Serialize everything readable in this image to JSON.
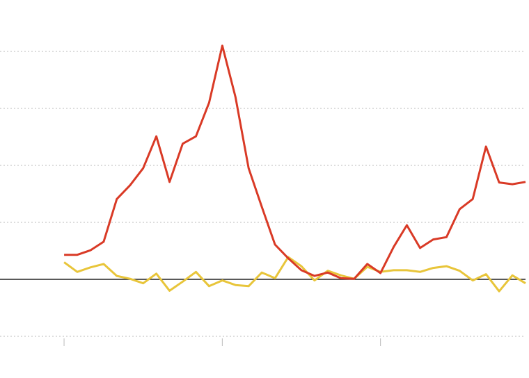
{
  "chart_data": {
    "type": "line",
    "x": [
      0,
      1,
      2,
      3,
      4,
      5,
      6,
      7,
      8,
      9,
      10,
      11,
      12,
      13,
      14,
      15,
      16,
      17,
      18,
      19,
      20,
      21,
      22,
      23,
      24,
      25,
      26,
      27,
      28,
      29,
      30,
      31,
      32,
      33,
      34,
      35
    ],
    "series": [
      {
        "color": "#e8c53a",
        "values": [
          0.3,
          0.13,
          0.21,
          0.27,
          0.06,
          0.01,
          -0.07,
          0.1,
          -0.2,
          -0.04,
          0.13,
          -0.12,
          -0.02,
          -0.1,
          -0.12,
          0.12,
          0.02,
          0.39,
          0.23,
          -0.02,
          0.15,
          0.07,
          0.01,
          0.22,
          0.13,
          0.16,
          0.16,
          0.13,
          0.2,
          0.23,
          0.15,
          -0.02,
          0.09,
          -0.21,
          0.07,
          -0.07
        ]
      },
      {
        "color": "#d93a26",
        "values": [
          0.43,
          0.43,
          0.51,
          0.66,
          1.41,
          1.65,
          1.95,
          2.51,
          1.71,
          2.38,
          2.51,
          3.1,
          4.1,
          3.2,
          1.95,
          1.27,
          0.61,
          0.37,
          0.16,
          0.06,
          0.12,
          0.02,
          0.01,
          0.27,
          0.11,
          0.57,
          0.95,
          0.55,
          0.7,
          0.74,
          1.23,
          1.41,
          2.33,
          1.7,
          1.67,
          1.71
        ]
      }
    ],
    "xlim": [
      -4.86,
      35
    ],
    "xticks": [
      0,
      12,
      24
    ],
    "ylim": [
      -1,
      4.4
    ],
    "yticks": [
      -1,
      0,
      1,
      2,
      3,
      4
    ],
    "grid": true,
    "zero_line": true
  }
}
